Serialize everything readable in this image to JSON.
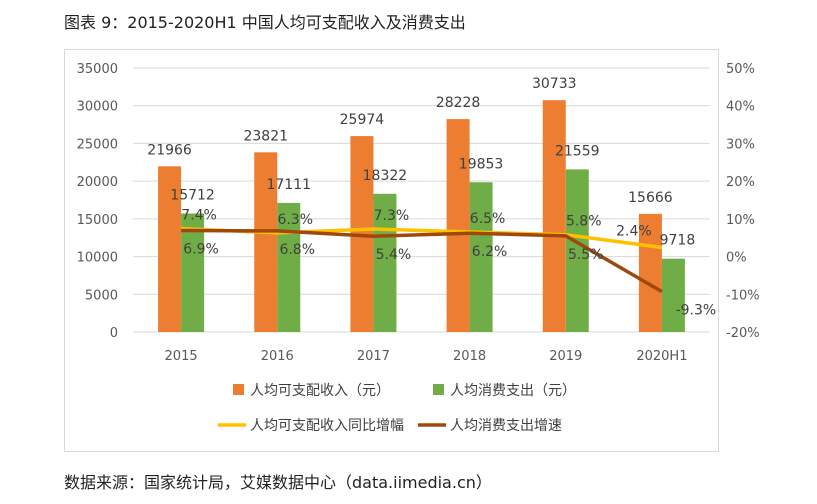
{
  "title": "图表 9：2015-2020H1 中国人均可支配收入及消费支出",
  "source": "数据来源：国家统计局，艾媒数据中心（data.iimedia.cn）",
  "chart_data": {
    "type": "bar+line",
    "categories": [
      "2015",
      "2016",
      "2017",
      "2018",
      "2019",
      "2020H1"
    ],
    "ylim": [
      0,
      35000
    ],
    "yticks": [
      "0",
      "5000",
      "10000",
      "15000",
      "20000",
      "25000",
      "30000",
      "35000"
    ],
    "y2lim": [
      -20,
      50
    ],
    "y2ticks": [
      "-20%",
      "-10%",
      "0%",
      "10%",
      "20%",
      "30%",
      "40%",
      "50%"
    ],
    "grid": true,
    "legend": "bottom",
    "series": [
      {
        "name": "人均可支配收入（元）",
        "type": "bar",
        "color": "#ED7D31",
        "values": [
          21966,
          23821,
          25974,
          28228,
          30733,
          15666
        ],
        "labels": [
          "21966",
          "23821",
          "25974",
          "28228",
          "30733",
          "15666"
        ]
      },
      {
        "name": "人均消费支出（元）",
        "type": "bar",
        "color": "#70AD47",
        "values": [
          15712,
          17111,
          18322,
          19853,
          21559,
          9718
        ],
        "labels": [
          "15712",
          "17111",
          "18322",
          "19853",
          "21559",
          "9718"
        ]
      },
      {
        "name": "人均可支配收入同比增幅",
        "type": "line",
        "axis": "right",
        "color": "#FFC000",
        "values": [
          7.4,
          6.3,
          7.3,
          6.5,
          5.8,
          2.4
        ],
        "labels": [
          "7.4%",
          "6.3%",
          "7.3%",
          "6.5%",
          "5.8%",
          "2.4%"
        ]
      },
      {
        "name": "人均消费支出增速",
        "type": "line",
        "axis": "right",
        "color": "#9E480E",
        "values": [
          6.9,
          6.8,
          5.4,
          6.2,
          5.5,
          -9.3
        ],
        "labels": [
          "6.9%",
          "6.8%",
          "5.4%",
          "6.2%",
          "5.5%",
          "-9.3%"
        ]
      }
    ]
  }
}
